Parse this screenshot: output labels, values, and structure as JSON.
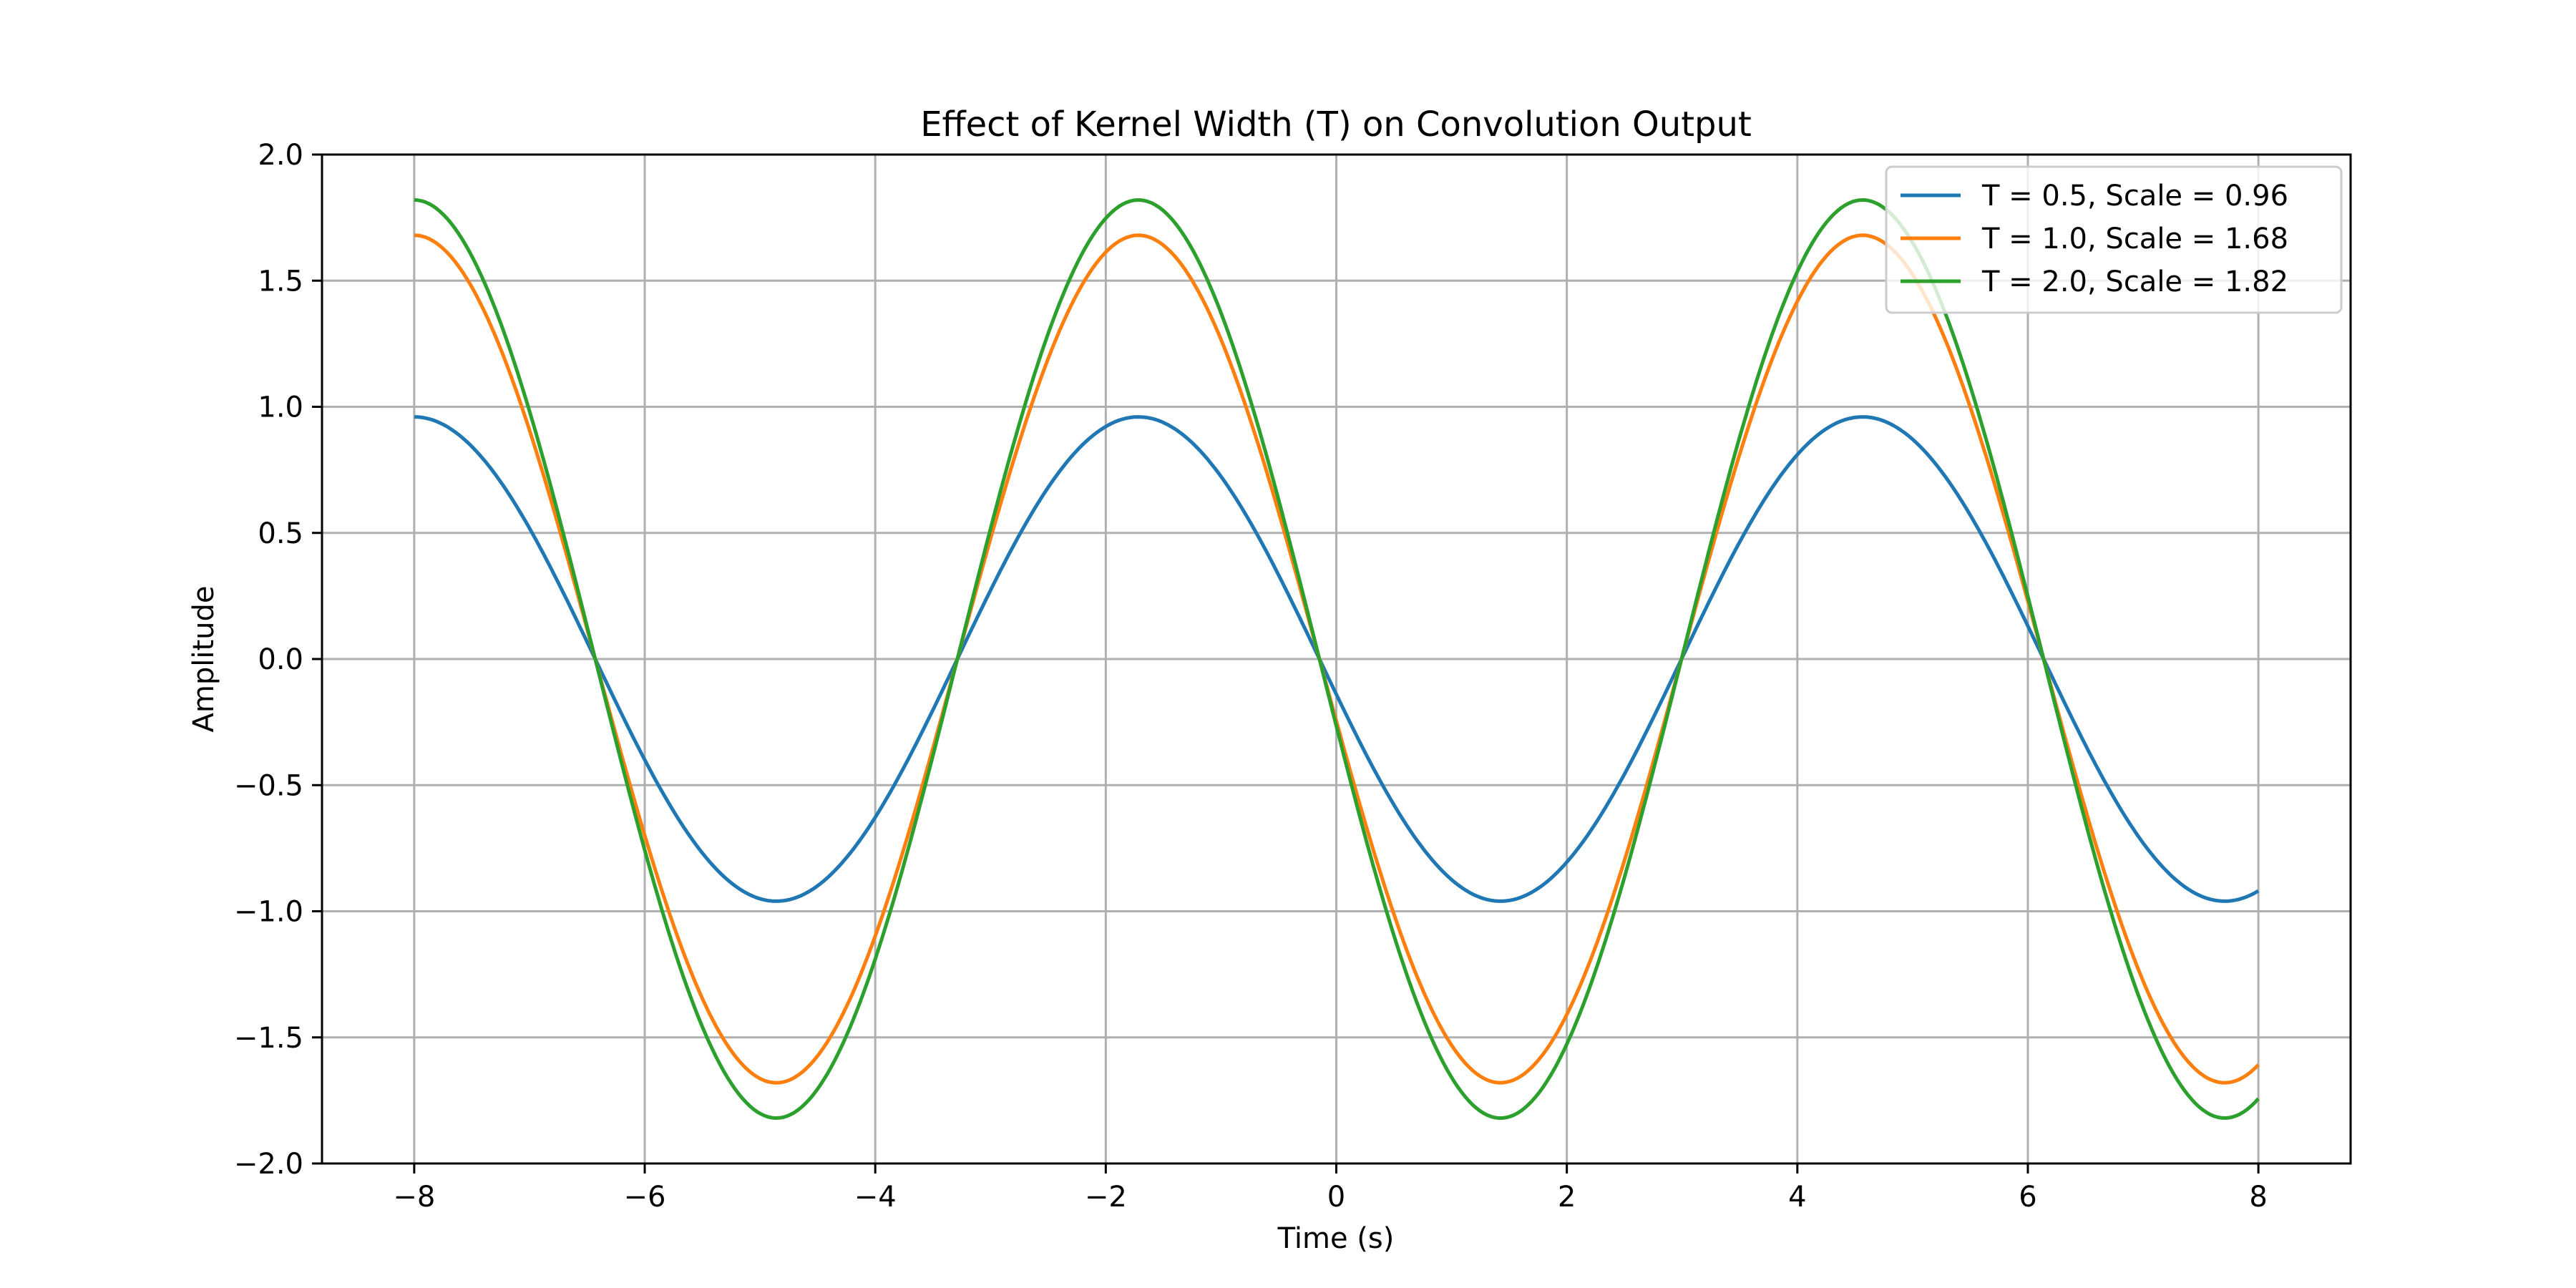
{
  "chart_data": {
    "type": "line",
    "title": "Effect of Kernel Width (T) on Convolution Output",
    "xlabel": "Time (s)",
    "ylabel": "Amplitude",
    "xlim": [
      -8.8,
      8.8
    ],
    "ylim": [
      -2.0,
      2.0
    ],
    "x_ticks": [
      -8,
      -6,
      -4,
      -2,
      0,
      2,
      4,
      6,
      8
    ],
    "x_tick_labels": [
      "−8",
      "−6",
      "−4",
      "−2",
      "0",
      "2",
      "4",
      "6",
      "8"
    ],
    "y_ticks": [
      -2.0,
      -1.5,
      -1.0,
      -0.5,
      0.0,
      0.5,
      1.0,
      1.5,
      2.0
    ],
    "y_tick_labels": [
      "−2.0",
      "−1.5",
      "−1.0",
      "−0.5",
      "0.0",
      "0.5",
      "1.0",
      "1.5",
      "2.0"
    ],
    "grid": true,
    "legend_position": "top-right",
    "x_range": [
      -8,
      8
    ],
    "period": 6.283,
    "peak_x": -1.717,
    "series": [
      {
        "name": "T = 0.5, Scale = 0.96",
        "amplitude": 0.96,
        "color": "#1f77b4"
      },
      {
        "name": "T = 1.0, Scale = 1.68",
        "amplitude": 1.68,
        "color": "#ff7f0e"
      },
      {
        "name": "T = 2.0, Scale = 1.82",
        "amplitude": 1.82,
        "color": "#2ca02c"
      }
    ]
  }
}
